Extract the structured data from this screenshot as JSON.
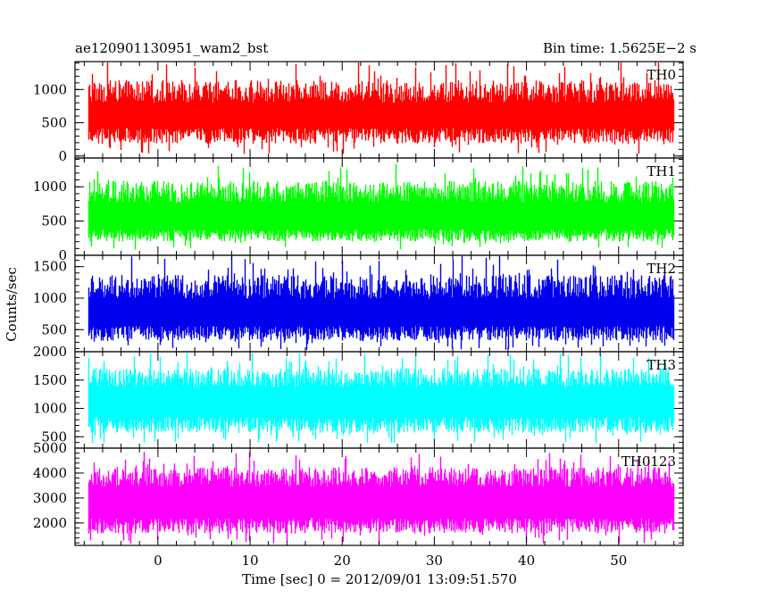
{
  "chart_data": {
    "type": "line",
    "title_left": "ae120901130951_wam2_bst",
    "title_right": "Bin time: 1.5625E−2 s",
    "xlabel": "Time [sec] 0 = 2012/09/01 13:09:51.570",
    "ylabel": "Counts/sec",
    "xlim": [
      -9,
      57
    ],
    "xticks": [
      0,
      10,
      20,
      30,
      40,
      50
    ],
    "x_start": -7.5,
    "x_end": 56,
    "grid": false,
    "panels": [
      {
        "name": "TH0",
        "color": "#ff0000",
        "ylim": [
          -30,
          1420
        ],
        "yticks": [
          0,
          500,
          1000
        ],
        "base_level": 420,
        "top_level": 800,
        "spike_max": 1420,
        "dip_min": 30
      },
      {
        "name": "TH1",
        "color": "#00ff00",
        "ylim": [
          0,
          1420
        ],
        "yticks": [
          0,
          500,
          1000
        ],
        "base_level": 380,
        "top_level": 770,
        "spike_max": 1350,
        "dip_min": 80
      },
      {
        "name": "TH2",
        "color": "#0000ee",
        "ylim": [
          150,
          1680
        ],
        "yticks": [
          500,
          1000,
          1500
        ],
        "base_level": 560,
        "top_level": 990,
        "spike_max": 1680,
        "dip_min": 170
      },
      {
        "name": "TH3",
        "color": "#00ffff",
        "ylim": [
          300,
          2000
        ],
        "yticks": [
          500,
          1000,
          1500,
          2000
        ],
        "base_level": 850,
        "top_level": 1370,
        "spike_max": 1980,
        "dip_min": 380
      },
      {
        "name": "TH0123",
        "color": "#ff00ff",
        "ylim": [
          1100,
          5000
        ],
        "yticks": [
          2000,
          3000,
          4000,
          5000
        ],
        "base_level": 2200,
        "top_level": 3450,
        "spike_max": 4900,
        "dip_min": 1150
      }
    ]
  }
}
